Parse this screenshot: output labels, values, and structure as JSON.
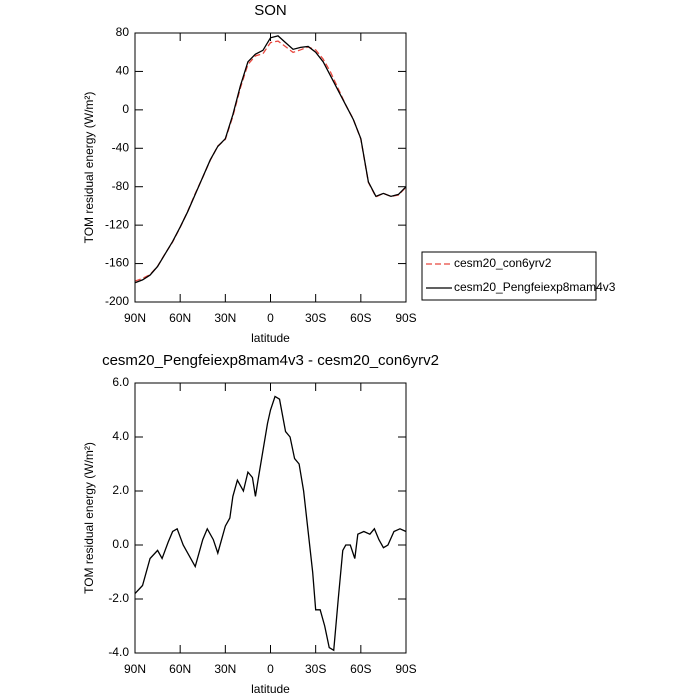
{
  "chart_data": [
    {
      "type": "line",
      "title": "SON",
      "xlabel": "latitude",
      "ylabel": "TOM residual energy (W/m²)",
      "x": [
        90,
        85,
        80,
        75,
        70,
        65,
        60,
        55,
        50,
        45,
        40,
        35,
        30,
        25,
        20,
        15,
        10,
        5,
        0,
        -5,
        -10,
        -15,
        -20,
        -25,
        -30,
        -35,
        -40,
        -45,
        -50,
        -55,
        -60,
        -65,
        -70,
        -75,
        -80,
        -85,
        -90
      ],
      "series": [
        {
          "name": "cesm20_con6yrv2",
          "color": "#e8483f",
          "style": "dashed",
          "values": [
            -178.2,
            -175.5,
            -171.5,
            -162.8,
            -149.7,
            -137.5,
            -122.3,
            -105.7,
            -87.2,
            -70.2,
            -52.4,
            -37.7,
            -30.7,
            -6.8,
            22.8,
            47.3,
            56.2,
            58.5,
            70,
            71.6,
            65.8,
            59.8,
            62.5,
            65.5,
            62.4,
            52.8,
            38.9,
            22,
            5,
            -9.7,
            -30.4,
            -75.4,
            -90.6,
            -86.9,
            -90.2,
            -88.6,
            -80.5
          ]
        },
        {
          "name": "cesm20_Pengfeiexp8mam4v3",
          "color": "#000000",
          "style": "solid",
          "values": [
            -180,
            -177,
            -172,
            -163,
            -150,
            -137,
            -122,
            -106,
            -88,
            -70,
            -52,
            -38,
            -30,
            -5,
            25,
            50,
            58,
            62,
            75,
            77,
            70,
            63,
            65,
            66,
            60,
            50,
            35,
            20,
            5,
            -10,
            -30,
            -75,
            -90,
            -87,
            -90,
            -88,
            -80
          ]
        }
      ],
      "xlim": [
        90,
        -90
      ],
      "xticks": [
        {
          "value": 90,
          "label": "90N"
        },
        {
          "value": 60,
          "label": "60N"
        },
        {
          "value": 30,
          "label": "30N"
        },
        0,
        {
          "value": -30,
          "label": "30S"
        },
        {
          "value": -60,
          "label": "60S"
        },
        {
          "value": -90,
          "label": "90S"
        }
      ],
      "ylim": [
        -200,
        80
      ],
      "yticks": [
        80,
        40,
        0,
        -40,
        -80,
        -120,
        -160,
        -200
      ],
      "legend": "outside right"
    },
    {
      "type": "line",
      "title": "cesm20_Pengfeiexp8mam4v3 - cesm20_con6yrv2",
      "xlabel": "latitude",
      "ylabel": "TOM residual energy (W/m²)",
      "x": [
        90,
        85,
        80,
        75,
        72,
        68,
        65,
        62,
        58,
        55,
        50,
        45,
        42,
        38,
        35,
        30,
        27,
        25,
        22,
        20,
        18,
        15,
        12,
        10,
        8,
        5,
        2,
        0,
        -3,
        -6,
        -10,
        -13,
        -16,
        -19,
        -22,
        -25,
        -28,
        -30,
        -33,
        -36,
        -39,
        -42,
        -45,
        -48,
        -50,
        -53,
        -56,
        -58,
        -62,
        -66,
        -69,
        -72,
        -75,
        -78,
        -82,
        -86,
        -90
      ],
      "color": "#000000",
      "values": [
        -1.8,
        -1.5,
        -0.5,
        -0.2,
        -0.5,
        0.1,
        0.5,
        0.6,
        0,
        -0.3,
        -0.8,
        0.2,
        0.6,
        0.2,
        -0.3,
        0.7,
        1.0,
        1.8,
        2.4,
        2.2,
        2.0,
        2.7,
        2.5,
        1.8,
        2.5,
        3.5,
        4.5,
        5.0,
        5.5,
        5.4,
        4.2,
        4.0,
        3.2,
        3.0,
        2.0,
        0.5,
        -1.0,
        -2.4,
        -2.4,
        -3.0,
        -3.8,
        -3.9,
        -2.0,
        -0.2,
        0.0,
        0.0,
        -0.5,
        0.4,
        0.5,
        0.4,
        0.6,
        0.2,
        -0.1,
        0.0,
        0.5,
        0.6,
        0.5
      ],
      "xlim": [
        90,
        -90
      ],
      "xticks": [
        {
          "value": 90,
          "label": "90N"
        },
        {
          "value": 60,
          "label": "60N"
        },
        {
          "value": 30,
          "label": "30N"
        },
        0,
        {
          "value": -30,
          "label": "30S"
        },
        {
          "value": -60,
          "label": "60S"
        },
        {
          "value": -90,
          "label": "90S"
        }
      ],
      "ylim": [
        -4,
        6
      ],
      "yticks": [
        {
          "value": 6,
          "label": "6.0"
        },
        {
          "value": 4,
          "label": "4.0"
        },
        {
          "value": 2,
          "label": "2.0"
        },
        {
          "value": 0,
          "label": "0.0"
        },
        {
          "value": -2,
          "label": "-2.0"
        },
        {
          "value": -4,
          "label": "-4.0"
        }
      ]
    }
  ]
}
